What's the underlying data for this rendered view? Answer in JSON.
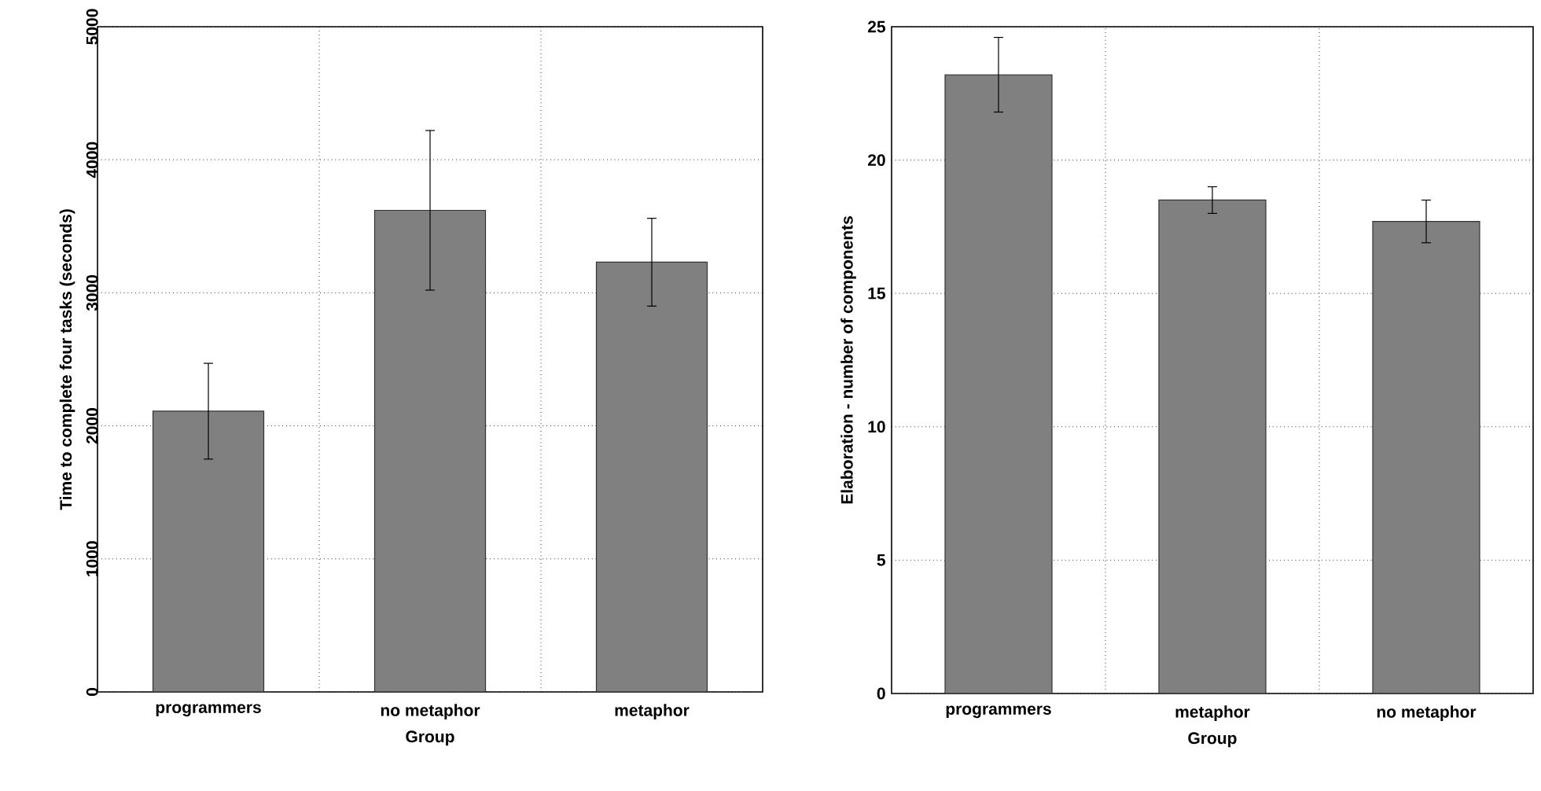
{
  "chart_data": [
    {
      "type": "bar",
      "xlabel": "Group",
      "ylabel": "Time to complete four tasks (seconds)",
      "categories": [
        "programmers",
        "no metaphor",
        "metaphor"
      ],
      "values": [
        2110,
        3620,
        3230
      ],
      "errors": [
        360,
        600,
        330
      ],
      "color": "#808080",
      "ylim": [
        0,
        5000
      ],
      "yticks": [
        0,
        1000,
        2000,
        3000,
        4000,
        5000
      ],
      "grid": true
    },
    {
      "type": "bar",
      "xlabel": "Group",
      "ylabel": "Elaboration - number of components",
      "categories": [
        "programmers",
        "metaphor",
        "no metaphor"
      ],
      "values": [
        23.2,
        18.5,
        17.7
      ],
      "errors": [
        1.4,
        0.5,
        0.8
      ],
      "color": "#808080",
      "ylim": [
        0,
        25
      ],
      "yticks": [
        0,
        5,
        10,
        15,
        20,
        25
      ],
      "grid": true
    }
  ]
}
